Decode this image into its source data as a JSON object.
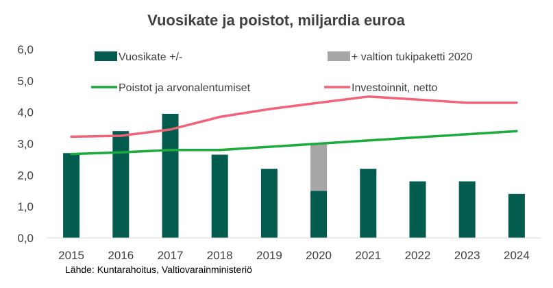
{
  "chart_data": {
    "type": "bar",
    "title": "Vuosikate ja poistot, miljardia euroa",
    "source": "Lähde: Kuntarahoitus, Valtiovarainministeriö",
    "categories": [
      "2015",
      "2016",
      "2017",
      "2018",
      "2019",
      "2020",
      "2021",
      "2022",
      "2023",
      "2024"
    ],
    "ylim": [
      0,
      6
    ],
    "yticks": [
      "0,0",
      "1,0",
      "2,0",
      "3,0",
      "4,0",
      "5,0",
      "6,0"
    ],
    "grid": false,
    "legend_position": "top",
    "series": [
      {
        "name": "Vuosikate +/-",
        "kind": "bar",
        "color": "#035c4d",
        "values": [
          2.7,
          3.4,
          3.95,
          2.65,
          2.2,
          1.5,
          2.2,
          1.8,
          1.8,
          1.4
        ]
      },
      {
        "name": "+ valtion tukipaketti 2020",
        "kind": "bar-stacked",
        "color": "#a6a6a6",
        "values": [
          0,
          0,
          0,
          0,
          0,
          1.5,
          0,
          0,
          0,
          0
        ]
      },
      {
        "name": "Poistot ja arvonalentumiset",
        "kind": "line",
        "color": "#1aab3c",
        "values": [
          2.67,
          2.72,
          2.8,
          2.8,
          2.9,
          3.0,
          3.1,
          3.2,
          3.3,
          3.4
        ]
      },
      {
        "name": "Investoinnit, netto",
        "kind": "line",
        "color": "#f2637a",
        "values": [
          3.22,
          3.25,
          3.45,
          3.85,
          4.1,
          4.3,
          4.5,
          4.4,
          4.3,
          4.3
        ]
      }
    ]
  }
}
